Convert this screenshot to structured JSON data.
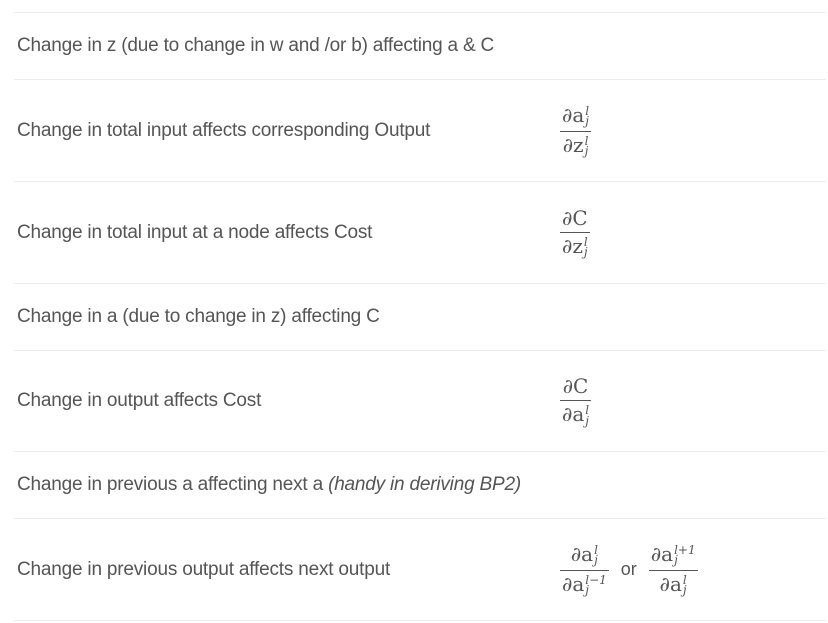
{
  "rows": [
    {
      "label": "Change in z (due to change in w and /or b) affecting a & C"
    },
    {
      "label": "Change in total input affects corresponding Output",
      "math": {
        "num_sym": "∂a",
        "num_sup": "l",
        "num_sub": "j",
        "den_sym": "∂z",
        "den_sup": "l",
        "den_sub": "j"
      }
    },
    {
      "label": "Change in total input at a node affects Cost",
      "math": {
        "num_sym": "∂C",
        "den_sym": "∂z",
        "den_sup": "l",
        "den_sub": "j"
      }
    },
    {
      "label": "Change in a (due to change in z) affecting C"
    },
    {
      "label": "Change in output affects Cost",
      "math": {
        "num_sym": "∂C",
        "den_sym": "∂a",
        "den_sup": "l",
        "den_sub": "j"
      }
    },
    {
      "label": "Change in previous a affecting next a",
      "label_italic": "(handy in deriving BP2)"
    },
    {
      "label": "Change in previous output affects next output",
      "math": {
        "num_sym": "∂a",
        "num_sup": "l",
        "num_sub": "j",
        "den_sym": "∂a",
        "den_sup": "l−1",
        "den_sub": "j"
      },
      "or": "or",
      "math2": {
        "num_sym": "∂a",
        "num_sup": "l+1",
        "num_sub": "j",
        "den_sym": "∂a",
        "den_sup": "l",
        "den_sub": "j"
      }
    }
  ]
}
